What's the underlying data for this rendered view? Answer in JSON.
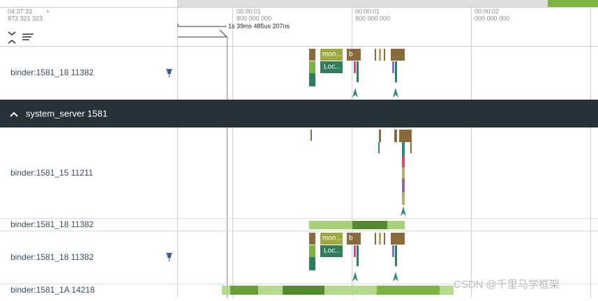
{
  "header": {
    "time": "04:37:33",
    "plus": "+",
    "offset": "873 321 323",
    "ticks": [
      {
        "time": "00:00:01",
        "ns": "800 000 000"
      },
      {
        "time": "00:00:01",
        "ns": "900 000 000"
      },
      {
        "time": "00:00:02",
        "ns": "000 000 000"
      }
    ],
    "duration": "1s 39ms 485us 207ns"
  },
  "tracks": [
    {
      "name": "binder:1581_18 11382",
      "slices": [
        "mon...",
        "b",
        "Loc..."
      ]
    },
    {
      "group": "system_server 1581"
    },
    {
      "name": "binder:1581_15 11211"
    },
    {
      "name": "binder:1581_18 11382"
    },
    {
      "name": "binder:1581_18 11382",
      "slices": [
        "mon...",
        "b",
        "Loc..."
      ]
    },
    {
      "name": "binder:1581_1A 14218"
    }
  ],
  "watermark": "CSDN @千里马学框架"
}
